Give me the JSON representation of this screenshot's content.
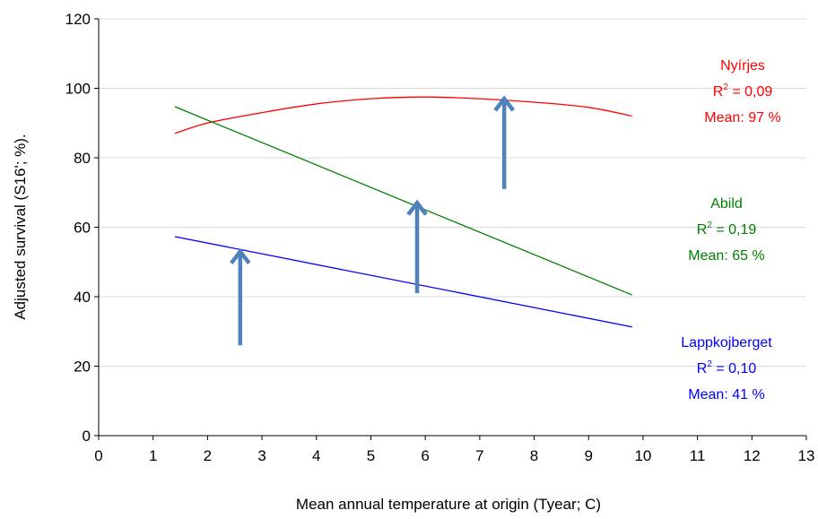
{
  "chart_data": {
    "type": "line",
    "xlabel": "Mean annual temperature at origin  (Tyear; C)",
    "ylabel": "Adjusted survival (S16'; %).",
    "xlim": [
      0,
      13
    ],
    "ylim": [
      0,
      120
    ],
    "x_ticks": [
      "0",
      "1",
      "2",
      "3",
      "4",
      "5",
      "6",
      "7",
      "8",
      "9",
      "10",
      "11",
      "12",
      "13"
    ],
    "y_ticks": [
      "0",
      "20",
      "40",
      "60",
      "80",
      "100",
      "120"
    ],
    "grid": "horizontal",
    "series": [
      {
        "name": "Nyírjes",
        "color": "#ff0000",
        "x": [
          1.4,
          2.0,
          3.0,
          4.0,
          5.0,
          6.0,
          7.0,
          8.0,
          9.0,
          9.8
        ],
        "y": [
          87,
          90,
          93,
          95.5,
          97,
          97.5,
          97,
          96,
          94.5,
          92
        ]
      },
      {
        "name": "Abild",
        "color": "#008000",
        "x": [
          1.4,
          9.8
        ],
        "y": [
          94.7,
          40.5
        ]
      },
      {
        "name": "Lappkojberget",
        "color": "#0000ff",
        "x": [
          1.4,
          9.8
        ],
        "y": [
          57.3,
          31.3
        ]
      }
    ],
    "annotations": [
      {
        "series": "Nyírjes",
        "color": "#ff0000",
        "name": "Nyírjes",
        "r2_label": "R",
        "r2_sup": "2",
        "r2_value": " = 0,09",
        "mean": "Mean: 97 %"
      },
      {
        "series": "Abild",
        "color": "#008000",
        "name": "Abild",
        "r2_label": "R",
        "r2_sup": "2",
        "r2_value": " = 0,19",
        "mean": "Mean: 65 %"
      },
      {
        "series": "Lappkojberget",
        "color": "#0000ff",
        "name": "Lappkojberget",
        "r2_label": "R",
        "r2_sup": "2",
        "r2_value": " = 0,10",
        "mean": "Mean: 41 %"
      }
    ],
    "arrows": [
      {
        "x": 2.6,
        "y_from": 26,
        "y_to": 53
      },
      {
        "x": 5.85,
        "y_from": 41,
        "y_to": 67
      },
      {
        "x": 7.45,
        "y_from": 71,
        "y_to": 97
      }
    ],
    "arrow_color": "#4f81bd"
  }
}
